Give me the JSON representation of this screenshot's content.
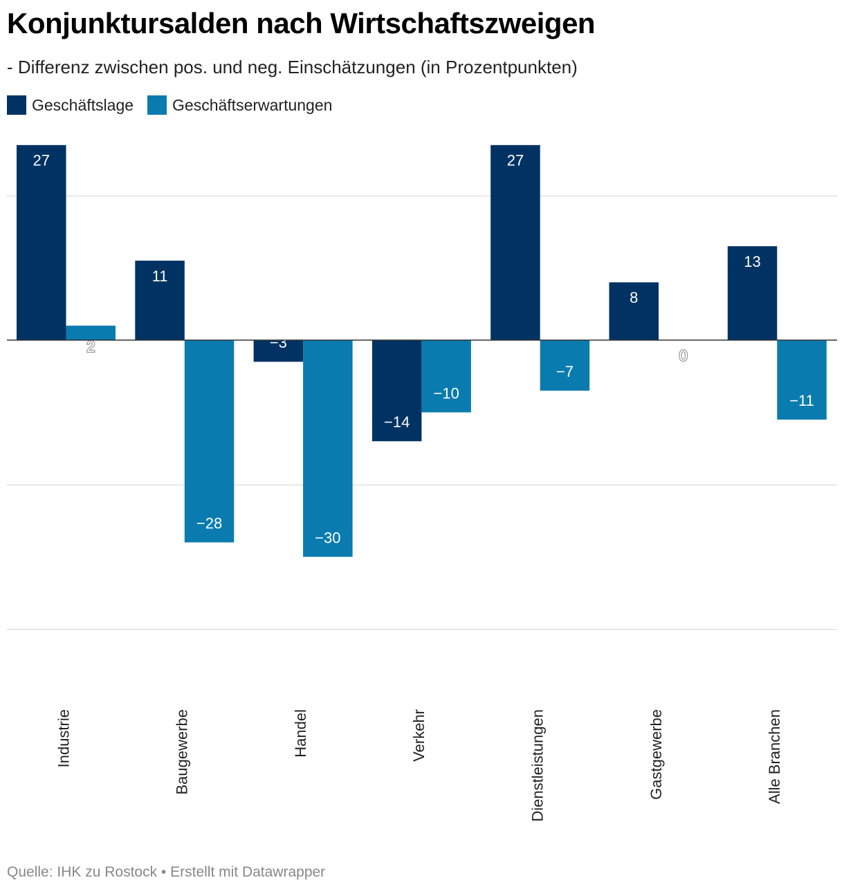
{
  "header": {
    "title": "Konjunktursalden nach Wirtschaftszweigen",
    "subtitle": "- Differenz zwischen pos. und neg. Einschätzungen (in Prozentpunkten)"
  },
  "footer": {
    "source": "Quelle: IHK zu Rostock • Erstellt mit Datawrapper"
  },
  "chart_data": {
    "type": "bar",
    "title": "Konjunktursalden nach Wirtschaftszweigen",
    "subtitle": "- Differenz zwischen pos. und neg. Einschätzungen (in Prozentpunkten)",
    "categories": [
      "Industrie",
      "Baugewerbe",
      "Handel",
      "Verkehr",
      "Dienstleistungen",
      "Gastgewerbe",
      "Alle Branchen"
    ],
    "series": [
      {
        "name": "Geschäftslage",
        "color": "#003263",
        "values": [
          27,
          11,
          -3,
          -14,
          27,
          8,
          13
        ],
        "labels": [
          "27",
          "11",
          "−3",
          "−14",
          "27",
          "8",
          "13"
        ]
      },
      {
        "name": "Geschäftserwartungen",
        "color": "#0a7baf",
        "values": [
          2,
          -28,
          -30,
          -10,
          -7,
          0,
          -11
        ],
        "labels": [
          "2",
          "−28",
          "−30",
          "−10",
          "−7",
          "0",
          "−11"
        ]
      }
    ],
    "ylim": [
      -40,
      27
    ],
    "gridlines": [
      20,
      -20,
      -40
    ],
    "grid": true,
    "legend_position": "top-left",
    "xlabel": "",
    "ylabel": ""
  }
}
